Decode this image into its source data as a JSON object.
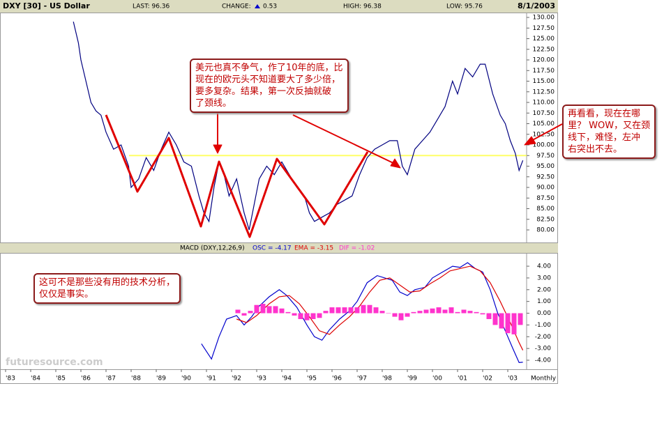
{
  "header": {
    "symbol": "DXY [30] - US Dollar",
    "last": "LAST: 96.36",
    "change": "CHANGE:",
    "change_value": "0.53",
    "high": "HIGH: 96.38",
    "low": "LOW: 95.76",
    "date": "8/1/2003"
  },
  "watermark": "futuresource.com",
  "notes": [
    [
      "美元也真不争气，作了10年的底，比",
      "现在的欧元头不知道要大了多少倍，",
      "要多复杂。结果，第一次反抽就破",
      "了颈线。"
    ],
    [
      "再看看，现在在哪",
      "里？ WOW，又在颈",
      "线下，难怪，左冲",
      "右突出不去。"
    ],
    [
      "这可不是那些没有用的技术分析，",
      "仅仅是事实。"
    ]
  ],
  "chart_data": [
    {
      "type": "line",
      "xlim": [
        1983,
        2003.75
      ],
      "ylim": [
        77.05,
        131.15
      ],
      "xticks": [
        {
          "value": 1983,
          "label": "'83"
        },
        {
          "value": 1984,
          "label": "'84"
        },
        {
          "value": 1985,
          "label": "'85"
        },
        {
          "value": 1986,
          "label": "'86"
        },
        {
          "value": 1987,
          "label": "'87"
        },
        {
          "value": 1988,
          "label": "'88"
        },
        {
          "value": 1989,
          "label": "'89"
        },
        {
          "value": 1990,
          "label": "'90"
        },
        {
          "value": 1991,
          "label": "'91"
        },
        {
          "value": 1992,
          "label": "'92"
        },
        {
          "value": 1993,
          "label": "'93"
        },
        {
          "value": 1994,
          "label": "'94"
        },
        {
          "value": 1995,
          "label": "'95"
        },
        {
          "value": 1996,
          "label": "'96"
        },
        {
          "value": 1997,
          "label": "'97"
        },
        {
          "value": 1998,
          "label": "'98"
        },
        {
          "value": 1999,
          "label": "'99"
        },
        {
          "value": 2000,
          "label": "'00"
        },
        {
          "value": 2001,
          "label": "'01"
        },
        {
          "value": 2002,
          "label": "'02"
        },
        {
          "value": 2003,
          "label": "'03"
        }
      ],
      "x_interval": "Monthly",
      "yticks": [
        {
          "value": 80,
          "label": "80.00"
        },
        {
          "value": 82.5,
          "label": "82.50"
        },
        {
          "value": 85,
          "label": "85.00"
        },
        {
          "value": 87.5,
          "label": "87.50"
        },
        {
          "value": 90,
          "label": "90.00"
        },
        {
          "value": 92.5,
          "label": "92.50"
        },
        {
          "value": 95,
          "label": "95.00"
        },
        {
          "value": 97.5,
          "label": "97.50"
        },
        {
          "value": 100,
          "label": "100.00"
        },
        {
          "value": 102.5,
          "label": "102.50"
        },
        {
          "value": 105,
          "label": "105.00"
        },
        {
          "value": 107.5,
          "label": "107.50"
        },
        {
          "value": 110,
          "label": "110.00"
        },
        {
          "value": 112.5,
          "label": "112.50"
        },
        {
          "value": 115,
          "label": "115.00"
        },
        {
          "value": 117.5,
          "label": "117.50"
        },
        {
          "value": 120,
          "label": "120.00"
        },
        {
          "value": 122.5,
          "label": "122.50"
        },
        {
          "value": 125,
          "label": "125.00"
        },
        {
          "value": 127.5,
          "label": "127.50"
        },
        {
          "value": 130,
          "label": "130.00"
        }
      ],
      "hline": {
        "value": 97.5,
        "color": "#ffff66"
      },
      "series": [
        {
          "color": "#000080",
          "x": [
            1985.7,
            1985.9,
            1986.0,
            1986.2,
            1986.4,
            1986.6,
            1986.8,
            1987.0,
            1987.3,
            1987.6,
            1987.9,
            1988.0,
            1988.3,
            1988.6,
            1988.9,
            1989.2,
            1989.5,
            1989.8,
            1990.1,
            1990.4,
            1990.7,
            1990.9,
            1991.1,
            1991.3,
            1991.5,
            1991.7,
            1991.9,
            1992.2,
            1992.5,
            1992.7,
            1992.9,
            1993.1,
            1993.4,
            1993.7,
            1994.0,
            1994.3,
            1994.6,
            1994.9,
            1995.1,
            1995.3,
            1995.6,
            1995.9,
            1996.2,
            1996.5,
            1996.8,
            1997.1,
            1997.4,
            1997.7,
            1998.0,
            1998.3,
            1998.6,
            1998.8,
            1999.0,
            1999.3,
            1999.6,
            1999.9,
            2000.2,
            2000.5,
            2000.8,
            2001.0,
            2001.3,
            2001.6,
            2001.9,
            2002.1,
            2002.4,
            2002.7,
            2002.9,
            2003.1,
            2003.3,
            2003.45,
            2003.6
          ],
          "values": [
            129,
            124,
            120,
            115,
            110,
            108,
            107,
            103,
            99,
            100,
            95,
            90,
            92,
            97,
            94,
            99,
            103,
            100,
            96,
            95,
            88,
            84,
            82,
            90,
            96,
            93,
            88,
            92,
            84,
            80,
            86,
            92,
            95,
            93,
            96,
            93,
            90,
            88,
            84,
            82,
            83,
            84,
            86,
            87,
            88,
            93,
            97,
            99,
            100,
            101,
            101,
            95,
            93,
            99,
            101,
            103,
            106,
            109,
            115,
            112,
            118,
            116,
            119,
            119,
            112,
            107,
            105,
            101,
            98,
            94,
            96.36
          ]
        }
      ]
    },
    {
      "type": "combo",
      "title": "MACD (DXY,12,26,9)",
      "osc": "OSC = -4.17",
      "ema": "EMA = -3.15",
      "dif": "DIF = -1.02",
      "xlim": [
        1983,
        2003.75
      ],
      "y2lim": [
        -4.77,
        5.13
      ],
      "y2ticks": [
        {
          "value": 4,
          "label": "4.00"
        },
        {
          "value": 3,
          "label": "3.00"
        },
        {
          "value": 2,
          "label": "2.00"
        },
        {
          "value": 1,
          "label": "1.00"
        },
        {
          "value": 0,
          "label": "0.00"
        },
        {
          "value": -1,
          "label": "-1.00"
        },
        {
          "value": -2,
          "label": "-2.00"
        },
        {
          "value": -3,
          "label": "-3.00"
        },
        {
          "value": -4,
          "label": "-4.00"
        }
      ],
      "series": [
        {
          "kind": "line",
          "color": "#0000cc",
          "axis": "y2",
          "x": [
            1990.8,
            1991.2,
            1991.5,
            1991.8,
            1992.2,
            1992.5,
            1992.8,
            1993.1,
            1993.5,
            1993.9,
            1994.2,
            1994.6,
            1995.0,
            1995.3,
            1995.6,
            1995.9,
            1996.3,
            1996.7,
            1997.0,
            1997.4,
            1997.8,
            1998.1,
            1998.4,
            1998.7,
            1999.0,
            1999.3,
            1999.7,
            2000.0,
            2000.4,
            2000.8,
            2001.1,
            2001.4,
            2001.7,
            2002.0,
            2002.3,
            2002.6,
            2002.9,
            2003.2,
            2003.45,
            2003.6
          ],
          "values": [
            -2.6,
            -3.9,
            -2.0,
            -0.5,
            -0.2,
            -1.0,
            -0.3,
            0.6,
            1.4,
            2.0,
            1.5,
            0.5,
            -1.0,
            -2.0,
            -2.3,
            -1.4,
            -0.5,
            0.2,
            1.0,
            2.6,
            3.2,
            3.0,
            2.8,
            1.8,
            1.5,
            2.0,
            2.2,
            3.0,
            3.5,
            4.0,
            3.9,
            4.3,
            3.8,
            3.5,
            2.0,
            0.0,
            -1.5,
            -3.0,
            -4.2,
            -4.17
          ]
        },
        {
          "kind": "line",
          "color": "#dd0000",
          "axis": "y2",
          "x": [
            1992.2,
            1992.6,
            1993.0,
            1993.5,
            1993.9,
            1994.3,
            1994.7,
            1995.1,
            1995.5,
            1995.9,
            1996.3,
            1996.7,
            1997.1,
            1997.5,
            1997.9,
            1998.3,
            1998.7,
            1999.1,
            1999.5,
            1999.9,
            2000.3,
            2000.7,
            2001.1,
            2001.5,
            2001.9,
            2002.3,
            2002.7,
            2003.1,
            2003.45,
            2003.6
          ],
          "values": [
            -0.5,
            -0.8,
            -0.2,
            0.8,
            1.4,
            1.5,
            0.8,
            -0.3,
            -1.5,
            -1.8,
            -1.0,
            -0.3,
            0.6,
            1.8,
            2.8,
            3.0,
            2.4,
            1.8,
            1.9,
            2.5,
            3.0,
            3.6,
            3.8,
            4.0,
            3.6,
            2.6,
            1.0,
            -0.8,
            -2.5,
            -3.15
          ]
        },
        {
          "kind": "bar",
          "color": "#ff33cc",
          "axis": "y2",
          "x": [
            1992.25,
            1992.5,
            1992.75,
            1993.0,
            1993.25,
            1993.5,
            1993.75,
            1994.0,
            1994.25,
            1994.5,
            1994.75,
            1995.0,
            1995.25,
            1995.5,
            1995.75,
            1996.0,
            1996.25,
            1996.5,
            1996.75,
            1997.0,
            1997.25,
            1997.5,
            1997.75,
            1998.0,
            1998.25,
            1998.5,
            1998.75,
            1999.0,
            1999.25,
            1999.5,
            1999.75,
            2000.0,
            2000.25,
            2000.5,
            2000.75,
            2001.0,
            2001.25,
            2001.5,
            2001.75,
            2002.0,
            2002.25,
            2002.5,
            2002.75,
            2003.0,
            2003.25,
            2003.5
          ],
          "values": [
            0.3,
            -0.2,
            0.2,
            0.7,
            0.8,
            0.6,
            0.6,
            0.4,
            0.1,
            -0.2,
            -0.5,
            -0.6,
            -0.5,
            -0.4,
            0.2,
            0.5,
            0.5,
            0.5,
            0.5,
            0.5,
            0.7,
            0.7,
            0.5,
            0.2,
            0.0,
            -0.3,
            -0.6,
            -0.3,
            0.1,
            0.2,
            0.3,
            0.4,
            0.5,
            0.3,
            0.5,
            0.1,
            0.3,
            0.2,
            0.1,
            -0.1,
            -0.5,
            -1.0,
            -1.3,
            -1.7,
            -1.8,
            -1.0
          ]
        }
      ]
    }
  ]
}
